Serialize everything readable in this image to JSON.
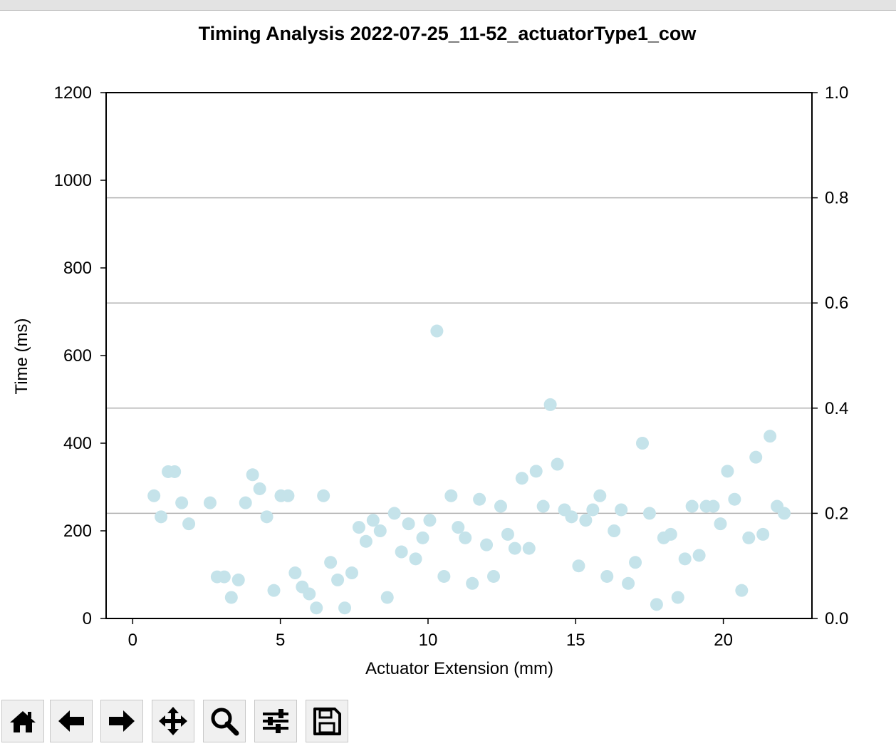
{
  "chart_data": {
    "type": "scatter",
    "title": "Timing Analysis 2022-07-25_11-52_actuatorType1_cow",
    "xlabel": "Actuator Extension (mm)",
    "ylabel": "Time (ms)",
    "xlim": [
      -0.9,
      23.0
    ],
    "ylim": [
      0,
      1200
    ],
    "xticks": [
      0,
      5,
      10,
      15,
      20
    ],
    "yticks": [
      0,
      200,
      400,
      600,
      800,
      1000,
      1200
    ],
    "y2lim": [
      0,
      1.0
    ],
    "y2ticks": [
      "0.0",
      "0.2",
      "0.4",
      "0.6",
      "0.8",
      "1.0"
    ],
    "grid": "horizontal, right axis",
    "legend": "none",
    "marker_color": "#c5e3ea",
    "series": [
      {
        "x": [
          0.72,
          0.96,
          1.2,
          1.42,
          1.66,
          1.9,
          2.62,
          2.86,
          3.1,
          3.34,
          3.58,
          3.82,
          4.06,
          4.3,
          4.54,
          4.78,
          5.02,
          5.26,
          5.5,
          5.74,
          5.98,
          6.22,
          6.46,
          6.7,
          6.94,
          7.18,
          7.42,
          7.66,
          7.9,
          8.14,
          8.38,
          8.62,
          8.86,
          9.1,
          9.34,
          9.58,
          9.82,
          10.06,
          10.3,
          10.54,
          10.78,
          11.02,
          11.26,
          11.5,
          11.74,
          11.98,
          12.22,
          12.46,
          12.7,
          12.94,
          13.18,
          13.42,
          13.66,
          13.9,
          14.14,
          14.38,
          14.62,
          14.86,
          15.1,
          15.34,
          15.58,
          15.82,
          16.06,
          16.3,
          16.54,
          16.78,
          17.02,
          17.26,
          17.5,
          17.74,
          17.98,
          18.22,
          18.46,
          18.7,
          18.94,
          19.18,
          19.42,
          19.66,
          19.9,
          20.14,
          20.38,
          20.62,
          20.86,
          21.1,
          21.34,
          21.58,
          21.82,
          22.06
        ],
        "y": [
          280,
          232,
          335,
          335,
          264,
          216,
          264,
          95,
          95,
          48,
          88,
          264,
          328,
          296,
          232,
          64,
          280,
          280,
          104,
          72,
          56,
          24,
          280,
          128,
          88,
          24,
          104,
          208,
          176,
          224,
          200,
          48,
          240,
          152,
          216,
          136,
          184,
          224,
          656,
          96,
          280,
          208,
          184,
          80,
          272,
          168,
          96,
          256,
          192,
          160,
          320,
          160,
          336,
          256,
          488,
          352,
          248,
          232,
          120,
          224,
          248,
          280,
          96,
          200,
          248,
          80,
          128,
          400,
          240,
          32,
          184,
          192,
          48,
          136,
          256,
          144,
          256,
          256,
          216,
          336,
          272,
          64,
          184,
          368,
          192,
          416,
          256,
          240
        ]
      }
    ]
  },
  "toolbar": {
    "buttons": [
      {
        "name": "home-button",
        "icon": "home-icon"
      },
      {
        "name": "back-button",
        "icon": "arrow-left-icon"
      },
      {
        "name": "forward-button",
        "icon": "arrow-right-icon"
      },
      {
        "name": "pan-button",
        "icon": "move-icon"
      },
      {
        "name": "zoom-button",
        "icon": "magnifier-icon"
      },
      {
        "name": "configure-subplots-button",
        "icon": "sliders-icon"
      },
      {
        "name": "save-button",
        "icon": "floppy-disk-icon"
      }
    ]
  }
}
